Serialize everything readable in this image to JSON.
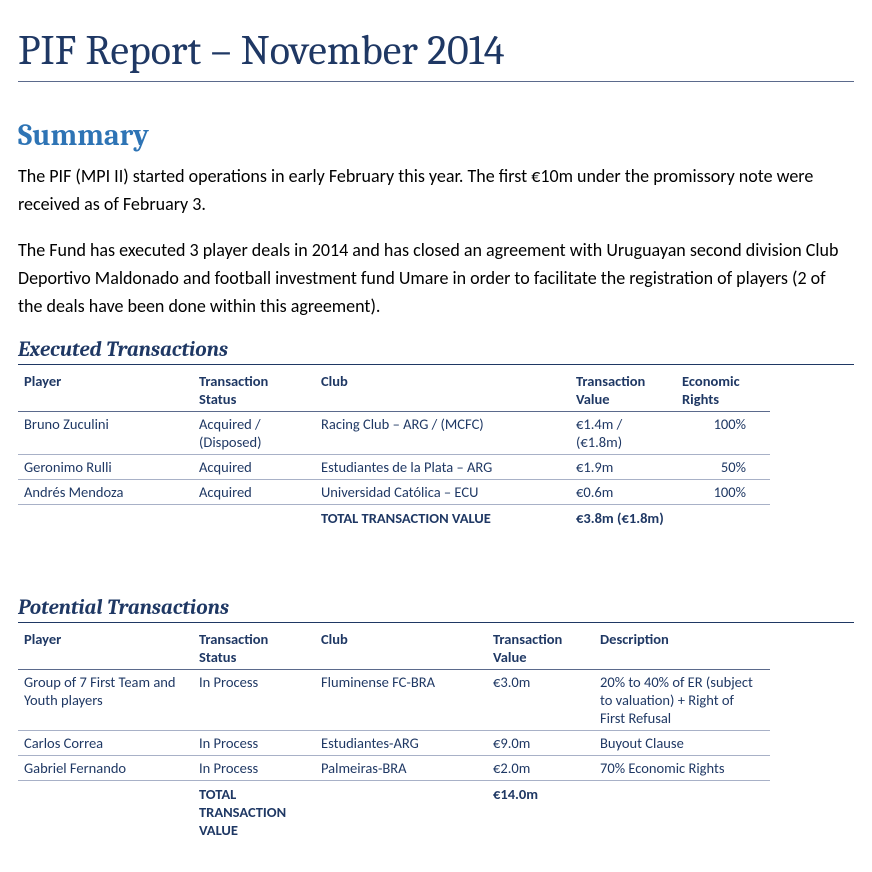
{
  "title": "PIF Report – November 2014",
  "summary_heading": "Summary",
  "summary_p1": "The PIF (MPI II) started operations in early February this year. The first €10m under the promissory note were received as of February 3.",
  "summary_p2": "The Fund has executed 3 player deals in 2014 and has closed an agreement with Uruguayan second division Club Deportivo Maldonado and football investment fund Umare in order to facilitate the registration of players (2 of the deals have been done within this agreement).",
  "executed": {
    "heading": "Executed Transactions",
    "columns": [
      "Player",
      "Transaction Status",
      "Club",
      "Transaction Value",
      "Economic Rights"
    ],
    "rows": [
      {
        "player": "Bruno Zuculini",
        "status": "Acquired / (Disposed)",
        "club": "Racing Club – ARG / (MCFC)",
        "value": "€1.4m / (€1.8m)",
        "rights": "100%"
      },
      {
        "player": "Geronimo Rulli",
        "status": "Acquired",
        "club": "Estudiantes de la Plata – ARG",
        "value": "€1.9m",
        "rights": "50%"
      },
      {
        "player": "Andrés Mendoza",
        "status": "Acquired",
        "club": "Universidad Católica – ECU",
        "value": "€0.6m",
        "rights": "100%"
      }
    ],
    "total_label": "TOTAL TRANSACTION VALUE",
    "total_value": "€3.8m (€1.8m)"
  },
  "potential": {
    "heading": "Potential Transactions",
    "columns": [
      "Player",
      "Transaction Status",
      "Club",
      "Transaction Value",
      "Description"
    ],
    "rows": [
      {
        "player": "Group of 7 First Team and Youth players",
        "status": "In Process",
        "club": "Fluminense FC-BRA",
        "value": "€3.0m",
        "desc": "20% to 40% of ER (subject to valuation) + Right of First Refusal"
      },
      {
        "player": "Carlos Correa",
        "status": "In Process",
        "club": "Estudiantes-ARG",
        "value": "€9.0m",
        "desc": "Buyout Clause"
      },
      {
        "player": "Gabriel Fernando",
        "status": "In Process",
        "club": "Palmeiras-BRA",
        "value": "€2.0m",
        "desc": "70% Economic Rights"
      }
    ],
    "total_label": "TOTAL TRANSACTION VALUE",
    "total_value": "€14.0m"
  },
  "colors": {
    "title": "#1f3864",
    "section": "#2e74b5",
    "table_text": "#1f3864",
    "rule": "#5b6a8c",
    "row_rule": "#a8b1c7"
  },
  "col_widths": {
    "executed": [
      175,
      122,
      255,
      106,
      94
    ],
    "potential": [
      175,
      122,
      172,
      107,
      176
    ]
  }
}
